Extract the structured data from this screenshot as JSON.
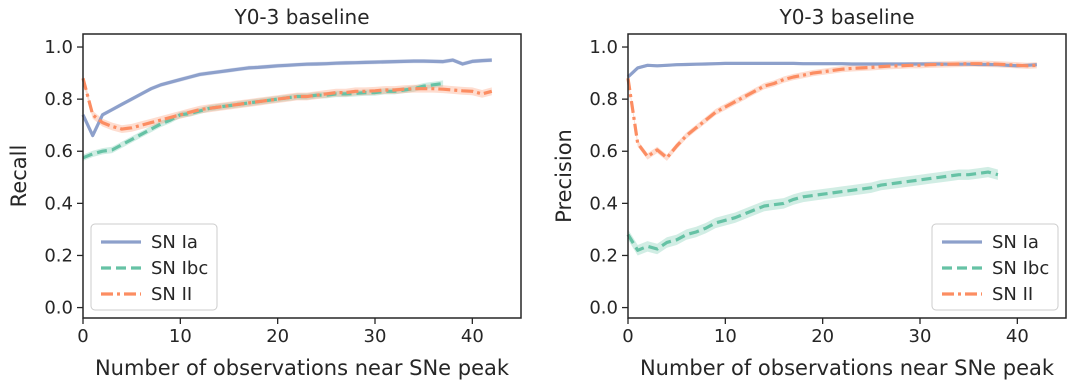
{
  "chart_data": [
    {
      "type": "line",
      "title": "Y0-3 baseline",
      "xlabel": "Number of observations near SNe peak",
      "ylabel": "Recall",
      "xlim": [
        0,
        45
      ],
      "ylim": [
        -0.04,
        1.05
      ],
      "xticks": [
        0,
        10,
        20,
        30,
        40
      ],
      "yticks": [
        0.0,
        0.2,
        0.4,
        0.6,
        0.8,
        1.0
      ],
      "xtick_labels": [
        "0",
        "10",
        "20",
        "30",
        "40"
      ],
      "ytick_labels": [
        "0.0",
        "0.2",
        "0.4",
        "0.6",
        "0.8",
        "1.0"
      ],
      "legend_position": "lower-left",
      "series": [
        {
          "name": "SN Ia",
          "color": "#8da0cb",
          "dash": "solid",
          "x": [
            0,
            1,
            2,
            3,
            4,
            5,
            6,
            7,
            8,
            9,
            10,
            11,
            12,
            13,
            14,
            15,
            16,
            17,
            18,
            19,
            20,
            21,
            22,
            23,
            24,
            25,
            26,
            27,
            28,
            29,
            30,
            31,
            32,
            33,
            34,
            35,
            36,
            37,
            38,
            39,
            40,
            41,
            42
          ],
          "y": [
            0.74,
            0.66,
            0.74,
            0.76,
            0.78,
            0.8,
            0.82,
            0.84,
            0.855,
            0.865,
            0.875,
            0.885,
            0.895,
            0.9,
            0.905,
            0.91,
            0.915,
            0.92,
            0.922,
            0.925,
            0.928,
            0.93,
            0.932,
            0.934,
            0.935,
            0.936,
            0.938,
            0.939,
            0.94,
            0.941,
            0.942,
            0.943,
            0.944,
            0.945,
            0.946,
            0.946,
            0.945,
            0.944,
            0.95,
            0.935,
            0.945,
            0.948,
            0.95
          ],
          "band": 0.008
        },
        {
          "name": "SN Ibc",
          "color": "#66c2a5",
          "dash": "dashed",
          "x": [
            0,
            1,
            2,
            3,
            4,
            5,
            6,
            7,
            8,
            9,
            10,
            11,
            12,
            13,
            14,
            15,
            16,
            17,
            18,
            19,
            20,
            21,
            22,
            23,
            24,
            25,
            26,
            27,
            28,
            29,
            30,
            31,
            32,
            33,
            34,
            35,
            36,
            37
          ],
          "y": [
            0.575,
            0.59,
            0.6,
            0.605,
            0.625,
            0.645,
            0.665,
            0.685,
            0.705,
            0.72,
            0.74,
            0.745,
            0.755,
            0.765,
            0.77,
            0.775,
            0.78,
            0.785,
            0.79,
            0.795,
            0.8,
            0.805,
            0.81,
            0.81,
            0.815,
            0.815,
            0.82,
            0.82,
            0.822,
            0.825,
            0.825,
            0.83,
            0.83,
            0.835,
            0.84,
            0.85,
            0.855,
            0.86
          ],
          "band": 0.012
        },
        {
          "name": "SN II",
          "color": "#fc8d62",
          "dash": "dashdot",
          "x": [
            0,
            1,
            2,
            3,
            4,
            5,
            6,
            7,
            8,
            9,
            10,
            11,
            12,
            13,
            14,
            15,
            16,
            17,
            18,
            19,
            20,
            21,
            22,
            23,
            24,
            25,
            26,
            27,
            28,
            29,
            30,
            31,
            32,
            33,
            34,
            35,
            36,
            37,
            38,
            39,
            40,
            41,
            42
          ],
          "y": [
            0.88,
            0.74,
            0.71,
            0.695,
            0.685,
            0.69,
            0.7,
            0.71,
            0.72,
            0.73,
            0.74,
            0.75,
            0.76,
            0.765,
            0.77,
            0.775,
            0.78,
            0.785,
            0.79,
            0.795,
            0.8,
            0.805,
            0.81,
            0.81,
            0.815,
            0.82,
            0.825,
            0.825,
            0.83,
            0.83,
            0.832,
            0.835,
            0.835,
            0.838,
            0.84,
            0.84,
            0.84,
            0.838,
            0.835,
            0.832,
            0.83,
            0.82,
            0.83
          ],
          "band": 0.015
        }
      ]
    },
    {
      "type": "line",
      "title": "Y0-3 baseline",
      "xlabel": "Number of observations near SNe peak",
      "ylabel": "Precision",
      "xlim": [
        0,
        45
      ],
      "ylim": [
        -0.04,
        1.05
      ],
      "xticks": [
        0,
        10,
        20,
        30,
        40
      ],
      "yticks": [
        0.0,
        0.2,
        0.4,
        0.6,
        0.8,
        1.0
      ],
      "xtick_labels": [
        "0",
        "10",
        "20",
        "30",
        "40"
      ],
      "ytick_labels": [
        "0.0",
        "0.2",
        "0.4",
        "0.6",
        "0.8",
        "1.0"
      ],
      "legend_position": "lower-right",
      "series": [
        {
          "name": "SN Ia",
          "color": "#8da0cb",
          "dash": "solid",
          "x": [
            0,
            1,
            2,
            3,
            4,
            5,
            6,
            7,
            8,
            9,
            10,
            11,
            12,
            13,
            14,
            15,
            16,
            17,
            18,
            19,
            20,
            21,
            22,
            23,
            24,
            25,
            26,
            27,
            28,
            29,
            30,
            31,
            32,
            33,
            34,
            35,
            36,
            37,
            38,
            39,
            40,
            41,
            42
          ],
          "y": [
            0.885,
            0.92,
            0.93,
            0.928,
            0.93,
            0.932,
            0.933,
            0.934,
            0.935,
            0.936,
            0.937,
            0.937,
            0.937,
            0.937,
            0.937,
            0.937,
            0.937,
            0.937,
            0.936,
            0.936,
            0.936,
            0.936,
            0.936,
            0.935,
            0.935,
            0.935,
            0.935,
            0.935,
            0.935,
            0.935,
            0.935,
            0.935,
            0.935,
            0.934,
            0.934,
            0.934,
            0.933,
            0.933,
            0.932,
            0.93,
            0.928,
            0.93,
            0.932
          ],
          "band": 0.006
        },
        {
          "name": "SN Ibc",
          "color": "#66c2a5",
          "dash": "dashed",
          "x": [
            0,
            1,
            2,
            3,
            4,
            5,
            6,
            7,
            8,
            9,
            10,
            11,
            12,
            13,
            14,
            15,
            16,
            17,
            18,
            19,
            20,
            21,
            22,
            23,
            24,
            25,
            26,
            27,
            28,
            29,
            30,
            31,
            32,
            33,
            34,
            35,
            36,
            37,
            38
          ],
          "y": [
            0.28,
            0.22,
            0.235,
            0.225,
            0.25,
            0.26,
            0.28,
            0.29,
            0.305,
            0.325,
            0.335,
            0.345,
            0.36,
            0.375,
            0.39,
            0.395,
            0.4,
            0.415,
            0.425,
            0.43,
            0.435,
            0.44,
            0.445,
            0.45,
            0.455,
            0.46,
            0.47,
            0.475,
            0.48,
            0.485,
            0.49,
            0.495,
            0.5,
            0.505,
            0.51,
            0.51,
            0.515,
            0.52,
            0.51
          ],
          "band": 0.02
        },
        {
          "name": "SN II",
          "color": "#fc8d62",
          "dash": "dashdot",
          "x": [
            0,
            1,
            2,
            3,
            4,
            5,
            6,
            7,
            8,
            9,
            10,
            11,
            12,
            13,
            14,
            15,
            16,
            17,
            18,
            19,
            20,
            21,
            22,
            23,
            24,
            25,
            26,
            27,
            28,
            29,
            30,
            31,
            32,
            33,
            34,
            35,
            36,
            37,
            38,
            39,
            40,
            41,
            42
          ],
          "y": [
            0.88,
            0.63,
            0.58,
            0.605,
            0.575,
            0.62,
            0.66,
            0.69,
            0.72,
            0.75,
            0.77,
            0.79,
            0.81,
            0.83,
            0.85,
            0.86,
            0.875,
            0.885,
            0.892,
            0.9,
            0.905,
            0.91,
            0.915,
            0.918,
            0.92,
            0.922,
            0.925,
            0.927,
            0.928,
            0.93,
            0.93,
            0.932,
            0.933,
            0.934,
            0.935,
            0.936,
            0.936,
            0.935,
            0.934,
            0.932,
            0.93,
            0.928,
            0.93
          ],
          "band": 0.012
        }
      ]
    }
  ]
}
